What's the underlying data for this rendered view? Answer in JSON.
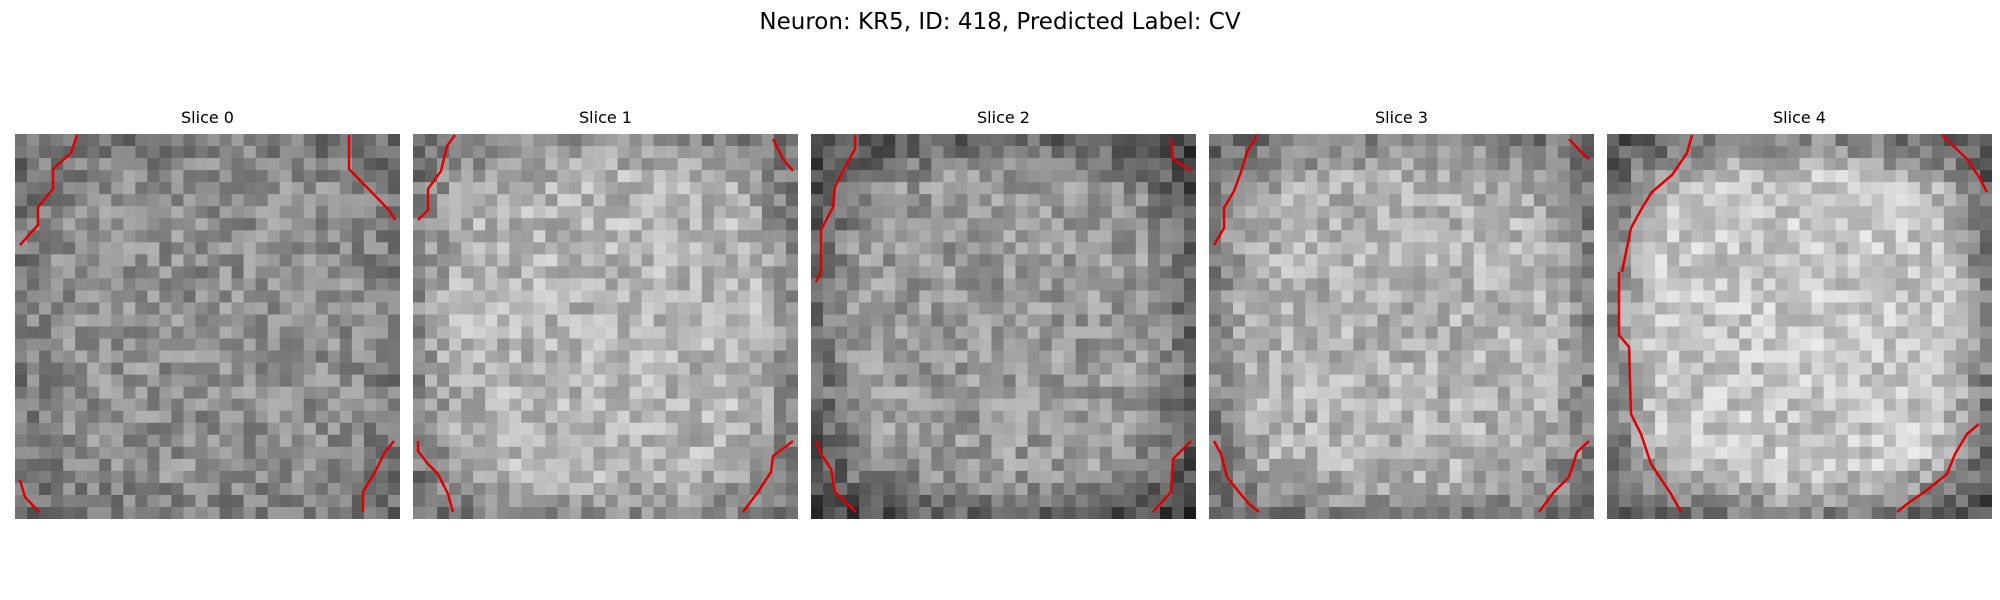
{
  "figure": {
    "title": "Neuron: KR5, ID: 418, Predicted Label: CV"
  },
  "panels": [
    {
      "title": "Slice 0",
      "brightness": 0.56,
      "edge_darkness": 0.18
    },
    {
      "title": "Slice 1",
      "brightness": 0.71,
      "edge_darkness": 0.35
    },
    {
      "title": "Slice 2",
      "brightness": 0.6,
      "edge_darkness": 0.45
    },
    {
      "title": "Slice 3",
      "brightness": 0.7,
      "edge_darkness": 0.38
    },
    {
      "title": "Slice 4",
      "brightness": 0.78,
      "edge_darkness": 0.6
    }
  ],
  "colors": {
    "contour": "#e00000"
  }
}
